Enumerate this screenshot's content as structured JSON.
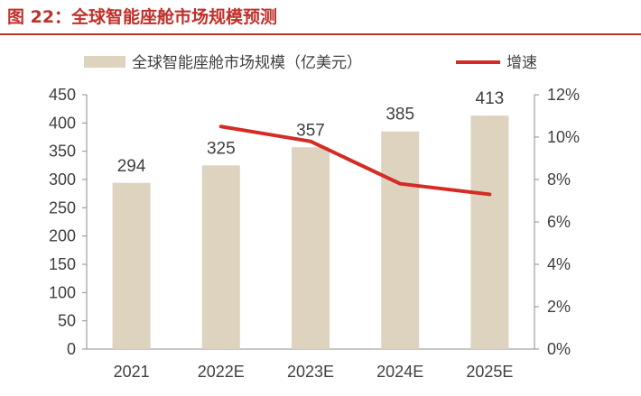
{
  "figure_title": "图 22：全球智能座舱市场规模预测",
  "chart_data": {
    "type": "bar",
    "categories": [
      "2021",
      "2022E",
      "2023E",
      "2024E",
      "2025E"
    ],
    "series": [
      {
        "name": "全球智能座舱市场规模（亿美元）",
        "type": "bar",
        "axis": "left",
        "values": [
          294,
          325,
          357,
          385,
          413
        ],
        "color": "#ddd3bf"
      },
      {
        "name": "增速",
        "type": "line",
        "axis": "right",
        "values": [
          null,
          0.105,
          0.098,
          0.078,
          0.073
        ],
        "color": "#d42b24"
      }
    ],
    "y_left": {
      "min": 0,
      "max": 450,
      "step": 50,
      "ticks": [
        "0",
        "50",
        "100",
        "150",
        "200",
        "250",
        "300",
        "350",
        "400",
        "450"
      ]
    },
    "y_right": {
      "min": 0,
      "max": 0.12,
      "step": 0.02,
      "ticks": [
        "0%",
        "2%",
        "4%",
        "6%",
        "8%",
        "10%",
        "12%"
      ]
    },
    "data_labels": [
      "294",
      "325",
      "357",
      "385",
      "413"
    ],
    "legend_position": "top",
    "grid": false
  }
}
